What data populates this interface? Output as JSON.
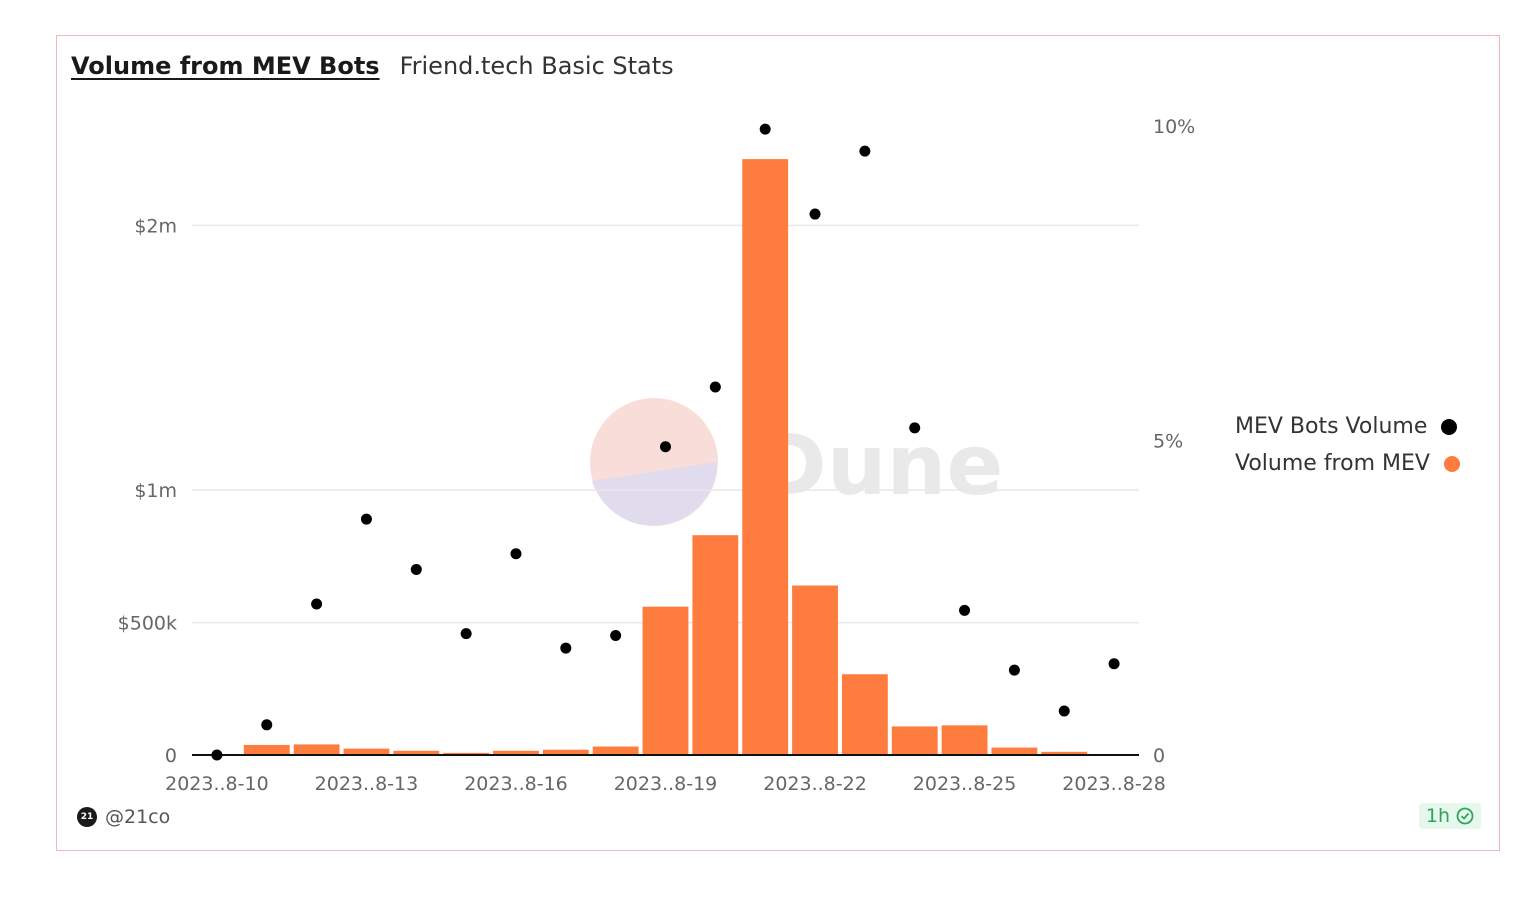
{
  "header": {
    "title": "Volume from MEV Bots",
    "subtitle": "Friend.tech Basic Stats"
  },
  "footer": {
    "author": "@21co",
    "avatar_text": "21",
    "refresh": "1h"
  },
  "watermark": {
    "text": "Dune"
  },
  "colors": {
    "bar": "#ff7c3f",
    "dot": "#000000",
    "grid": "#e8e8e8"
  },
  "chart_data": {
    "type": "bar",
    "x": [
      "2023-08-10",
      "2023-08-11",
      "2023-08-12",
      "2023-08-13",
      "2023-08-14",
      "2023-08-15",
      "2023-08-16",
      "2023-08-17",
      "2023-08-18",
      "2023-08-19",
      "2023-08-20",
      "2023-08-21",
      "2023-08-22",
      "2023-08-23",
      "2023-08-24",
      "2023-08-25",
      "2023-08-26",
      "2023-08-27",
      "2023-08-28"
    ],
    "x_tick_labels": [
      "2023..8-10",
      "2023..8-13",
      "2023..8-16",
      "2023..8-19",
      "2023..8-22",
      "2023..8-25",
      "2023..8-28"
    ],
    "x_tick_positions": [
      "2023-08-10",
      "2023-08-13",
      "2023-08-16",
      "2023-08-19",
      "2023-08-22",
      "2023-08-25",
      "2023-08-28"
    ],
    "series": [
      {
        "name": "Volume from MEV",
        "type": "bar",
        "axis": "left",
        "values": [
          0,
          38000,
          40000,
          24000,
          16000,
          8000,
          16000,
          20000,
          32000,
          560000,
          830000,
          2250000,
          640000,
          305000,
          108000,
          112000,
          28000,
          12000,
          2000
        ]
      },
      {
        "name": "MEV Bots Volume",
        "type": "scatter",
        "axis": "right",
        "values": [
          0.0,
          0.48,
          2.4,
          3.75,
          2.95,
          1.93,
          3.2,
          1.7,
          1.9,
          4.9,
          5.85,
          9.95,
          8.6,
          9.6,
          5.2,
          2.3,
          1.35,
          0.7,
          1.45
        ]
      }
    ],
    "y_left": {
      "ylim": [
        0,
        2375000
      ],
      "tick_values": [
        0,
        500000,
        1000000,
        2000000
      ],
      "tick_labels": [
        "0",
        "$500k",
        "$1m",
        "$2m"
      ]
    },
    "y_right": {
      "ylim": [
        0,
        10
      ],
      "tick_values": [
        0,
        5,
        10
      ],
      "tick_labels": [
        "0",
        "5%",
        "10%"
      ]
    },
    "grid": true,
    "legend_position": "right",
    "legend": [
      "MEV Bots Volume",
      "Volume from MEV"
    ]
  }
}
